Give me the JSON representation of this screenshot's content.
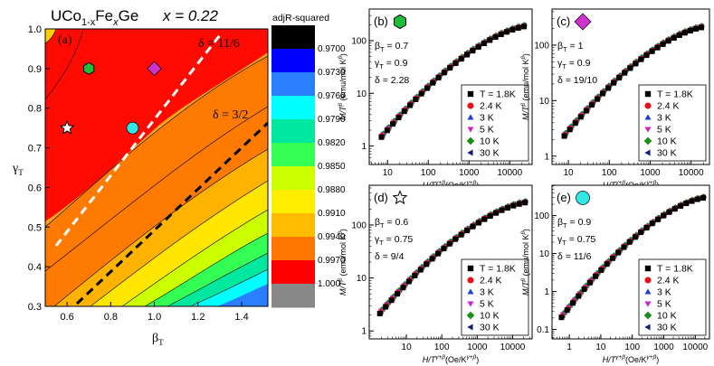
{
  "chart_data": [
    {
      "type": "heatmap",
      "panel": "(a)",
      "title_compound": "UCo",
      "title_sub1": "1-x",
      "title_fe": "Fe",
      "title_sub2": "x",
      "title_ge": "Ge",
      "title_x": "x = 0.22",
      "xlabel": "β",
      "xlabel_sub": "T",
      "ylabel": "γ",
      "ylabel_sub": "T",
      "xlim": [
        0.5,
        1.52
      ],
      "ylim": [
        0.3,
        1.0
      ],
      "xticks": [
        "0.6",
        "0.8",
        "1.0",
        "1.2",
        "1.4"
      ],
      "yticks": [
        "0.3",
        "0.4",
        "0.5",
        "0.6",
        "0.7",
        "0.8",
        "0.9",
        "1.0"
      ],
      "lines": [
        {
          "label": "δ = 11/6",
          "style": "white-dashed"
        },
        {
          "label": "δ = 3/2",
          "style": "black-dashed"
        }
      ],
      "markers": [
        {
          "shape": "star",
          "beta": 0.6,
          "gamma": 0.75,
          "color": "#ffffff"
        },
        {
          "shape": "hexagon",
          "beta": 0.7,
          "gamma": 0.9,
          "color": "#1fbf3a"
        },
        {
          "shape": "diamond",
          "beta": 1.0,
          "gamma": 0.9,
          "color": "#cc33cc"
        },
        {
          "shape": "circle",
          "beta": 0.9,
          "gamma": 0.75,
          "color": "#33e6e6"
        }
      ],
      "colorbar_title": "adjR-squared",
      "colorbar_ticks": [
        "0.9700",
        "0.9730",
        "0.9760",
        "0.9790",
        "0.9820",
        "0.9850",
        "0.9880",
        "0.9910",
        "0.9940",
        "0.9970",
        "1.000"
      ],
      "colorbar_colors": [
        "#000000",
        "#0000ff",
        "#2a7fff",
        "#00ffff",
        "#00e8a0",
        "#33ff55",
        "#ccff00",
        "#ffee00",
        "#ffbb00",
        "#ff7700",
        "#ff0000",
        "#888888"
      ]
    },
    {
      "type": "scatter",
      "panels": [
        {
          "label": "(b)",
          "symbol": "hexagon",
          "symbol_color": "#1fbf3a",
          "params": [
            "β",
            "T",
            "= 0.7",
            "γ",
            "T",
            "= 0.9",
            "δ = 2.28"
          ],
          "yticks": [
            "1",
            "10",
            "100"
          ],
          "xticks": [
            "10",
            "100",
            "1000",
            "10000"
          ]
        },
        {
          "label": "(c)",
          "symbol": "diamond",
          "symbol_color": "#cc33cc",
          "params": [
            "β",
            "T",
            "= 1",
            "γ",
            "T",
            "= 0.9",
            "δ = 19/10"
          ],
          "yticks": [
            "1",
            "10",
            "100"
          ],
          "xticks": [
            "10",
            "100",
            "1000",
            "10000"
          ]
        },
        {
          "label": "(d)",
          "symbol": "star",
          "symbol_color": "#ffffff",
          "params": [
            "β",
            "T",
            "= 0.6",
            "γ",
            "T",
            "= 0.75",
            "δ = 9/4"
          ],
          "yticks": [
            "1",
            "10",
            "100"
          ],
          "xticks": [
            "10",
            "100",
            "1000",
            "10000"
          ]
        },
        {
          "label": "(e)",
          "symbol": "circle",
          "symbol_color": "#33e6e6",
          "params": [
            "β",
            "T",
            "= 0.9",
            "γ",
            "T",
            "= 0.75",
            "δ = 11/6"
          ],
          "yticks": [
            "0.1",
            "1",
            "10",
            "100"
          ],
          "xticks": [
            "1",
            "10",
            "100",
            "1000",
            "10000"
          ]
        }
      ],
      "ylabel_main": "M/T",
      "ylabel_exp": "β",
      "ylabel_unit": "(emu/mol K",
      "ylabel_unit_exp": "β",
      "ylabel_close": ")",
      "xlabel_main": "H/T",
      "xlabel_exp": "γ+β",
      "xlabel_unit": "(Oe/K",
      "xlabel_unit_exp": "γ+β",
      "xlabel_close": ")",
      "series": [
        {
          "name": "T = 1.8K",
          "shape": "square",
          "color": "#000000"
        },
        {
          "name": "2.4 K",
          "shape": "circle",
          "color": "#e8121b"
        },
        {
          "name": "3 K",
          "shape": "triangle-up",
          "color": "#1f3fd6"
        },
        {
          "name": "5 K",
          "shape": "triangle-down",
          "color": "#cc22cc"
        },
        {
          "name": "10 K",
          "shape": "diamond",
          "color": "#1a8f1a"
        },
        {
          "name": "30 K",
          "shape": "triangle-left",
          "color": "#1a1a7a"
        }
      ]
    }
  ]
}
